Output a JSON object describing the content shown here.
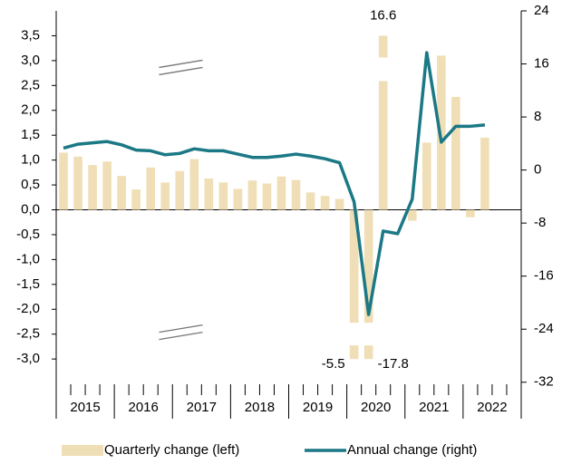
{
  "chart_data": {
    "type": "bar_line",
    "categories": [
      null,
      null,
      null,
      null,
      null,
      null,
      null,
      null,
      null,
      null,
      null,
      null,
      null,
      null,
      null,
      null,
      null,
      null,
      null,
      null,
      null,
      null,
      null,
      null,
      null,
      null,
      null,
      null,
      null,
      null,
      null,
      null
    ],
    "groups": [
      "2015",
      "2016",
      "2017",
      "2018",
      "2019",
      "2020",
      "2021",
      "2022"
    ],
    "series": [
      {
        "name": "Quarterly change (left)",
        "type": "bar",
        "axis": "y",
        "color": "#f0dfb6",
        "values": [
          1.15,
          1.07,
          0.9,
          0.97,
          0.68,
          0.41,
          0.85,
          0.55,
          0.78,
          1.02,
          0.63,
          0.55,
          0.42,
          0.59,
          0.53,
          0.67,
          0.6,
          0.35,
          0.28,
          0.22,
          -5.5,
          -17.8,
          16.6,
          0.0,
          -0.22,
          1.35,
          3.1,
          2.27,
          -0.15,
          1.45,
          null,
          null
        ]
      },
      {
        "name": "Annual change (right)",
        "type": "line",
        "axis": "y2",
        "color": "#1b7885",
        "values": [
          3.3,
          3.9,
          4.1,
          4.3,
          3.8,
          3.0,
          2.9,
          2.3,
          2.5,
          3.2,
          2.9,
          2.9,
          2.4,
          1.9,
          1.9,
          2.1,
          2.4,
          2.1,
          1.7,
          1.1,
          -4.8,
          -21.8,
          -9.2,
          -9.6,
          -4.4,
          17.7,
          4.2,
          6.6,
          6.6,
          6.8,
          null,
          null
        ]
      }
    ],
    "ylim": [
      -4.2,
      4.0
    ],
    "yticks": [
      {
        "value": 3.5,
        "label": "3,5"
      },
      {
        "value": 3.0,
        "label": "3,0"
      },
      {
        "value": 2.5,
        "label": "2,5"
      },
      {
        "value": 2.0,
        "label": "2,0"
      },
      {
        "value": 1.5,
        "label": "1,5"
      },
      {
        "value": 1.0,
        "label": "1,0"
      },
      {
        "value": 0.5,
        "label": "0,5"
      },
      {
        "value": 0,
        "label": "0,0"
      },
      {
        "value": -0.5,
        "label": "-0,5"
      },
      {
        "value": -1.0,
        "label": "-1,0"
      },
      {
        "value": -1.5,
        "label": "-1,5"
      },
      {
        "value": -2.0,
        "label": "-2,0"
      },
      {
        "value": -2.5,
        "label": "-2,5"
      },
      {
        "value": -3.0,
        "label": "-3,0"
      }
    ],
    "y2lim": [
      -37.5,
      24
    ],
    "y2ticks": [
      24,
      16,
      8,
      0,
      -8,
      -16,
      -24,
      -32
    ],
    "axis_break": true,
    "legend": "bottom"
  }
}
